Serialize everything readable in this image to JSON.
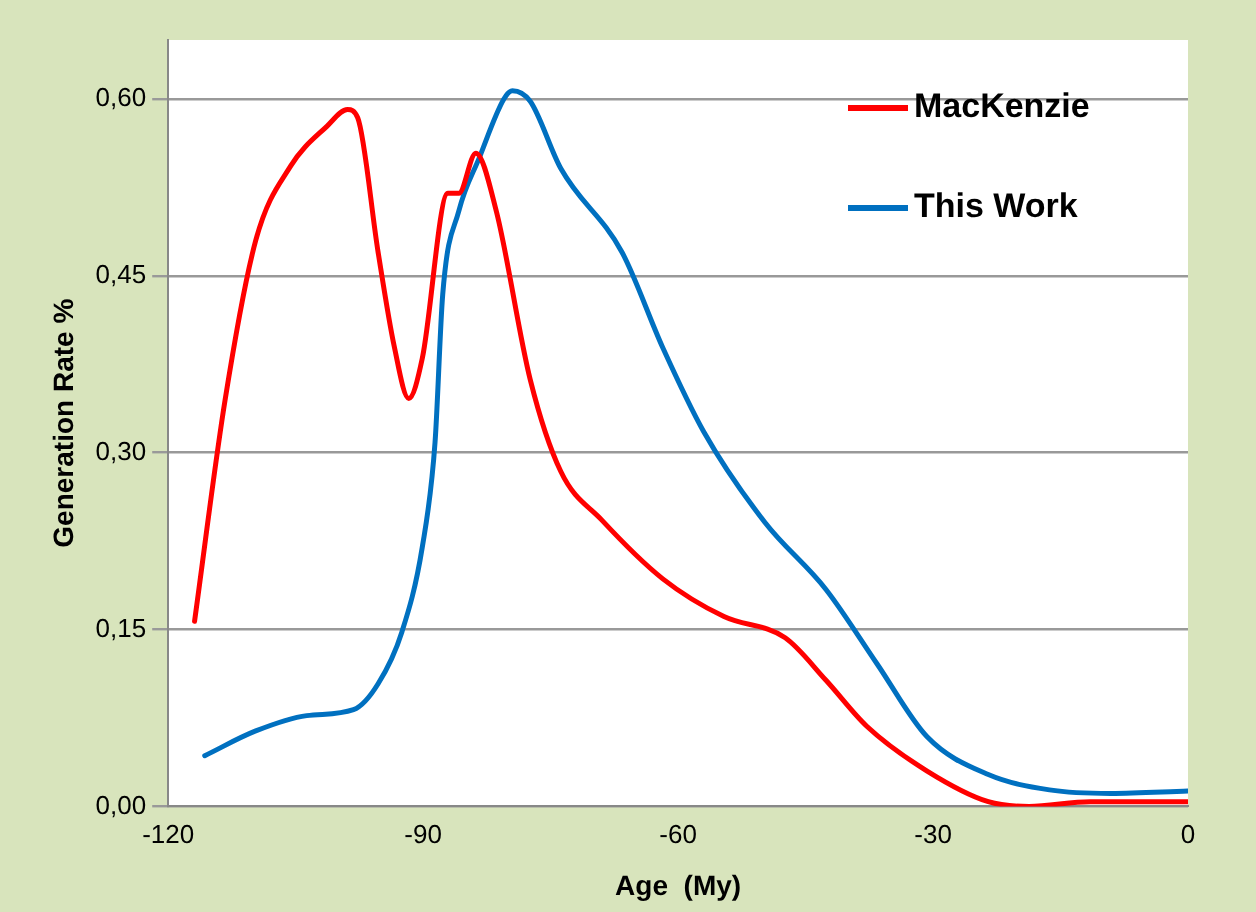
{
  "chart_data": {
    "type": "line",
    "xlabel": "Age  (My)",
    "ylabel": "Generation Rate %",
    "xlim": [
      -120,
      0
    ],
    "xticks": [
      -120,
      -90,
      -60,
      -30,
      0
    ],
    "ylim": [
      0,
      0.65
    ],
    "yticks": [
      {
        "value": 0,
        "label": "0,00"
      },
      {
        "value": 0.15,
        "label": "0,15"
      },
      {
        "value": 0.3,
        "label": "0,30"
      },
      {
        "value": 0.45,
        "label": "0,45"
      },
      {
        "value": 0.6,
        "label": "0,60"
      }
    ],
    "grid": "y",
    "legend": "top right",
    "marker": "none",
    "line_style": "solid",
    "series": [
      {
        "name": "MacKenzie",
        "color": "#ff0000",
        "x": [
          -116.9,
          -113.3,
          -109.7,
          -105.6,
          -101.3,
          -98.9,
          -97.7,
          -95.3,
          -93.4,
          -91.7,
          -90.1,
          -87.1,
          -85.8,
          -83.8,
          -81.4,
          -77.4,
          -73.8,
          -69,
          -61.8,
          -54.6,
          -47.4,
          -42.6,
          -37.8,
          -30.7,
          -23.5,
          -18.7,
          -11.5,
          0
        ],
        "values": [
          0.157,
          0.345,
          0.48,
          0.543,
          0.577,
          0.591,
          0.584,
          0.47,
          0.39,
          0.346,
          0.38,
          0.52,
          0.52,
          0.554,
          0.505,
          0.362,
          0.284,
          0.243,
          0.193,
          0.161,
          0.143,
          0.107,
          0.068,
          0.03,
          0.004,
          0,
          0.004,
          0.004
        ]
      },
      {
        "name": "This Work",
        "color": "#0070c0",
        "x": [
          -115.7,
          -109.7,
          -103.7,
          -98.2,
          -95.3,
          -92.5,
          -90.1,
          -88.6,
          -87.7,
          -85.8,
          -83.4,
          -80.5,
          -79.5,
          -77.4,
          -73.8,
          -66.6,
          -61.8,
          -57,
          -49.8,
          -42.6,
          -36.6,
          -30.7,
          -23.5,
          -16.3,
          -9.1,
          0
        ],
        "values": [
          0.043,
          0.064,
          0.077,
          0.082,
          0.104,
          0.148,
          0.22,
          0.309,
          0.434,
          0.505,
          0.55,
          0.6,
          0.607,
          0.598,
          0.541,
          0.47,
          0.389,
          0.318,
          0.241,
          0.184,
          0.121,
          0.059,
          0.027,
          0.014,
          0.011,
          0.013
        ]
      }
    ]
  }
}
